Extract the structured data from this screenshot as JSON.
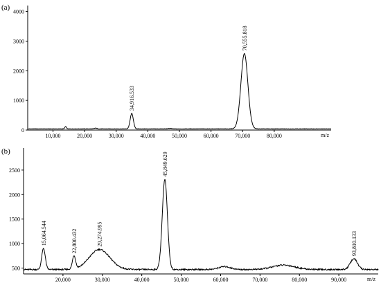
{
  "chart_data": [
    {
      "type": "line",
      "panel_label": "(a)",
      "x_unit_label": "m/z",
      "xlim": [
        2000,
        98000
      ],
      "ylim": [
        0,
        4200
      ],
      "x_ticks": [
        10000,
        20000,
        30000,
        40000,
        50000,
        60000,
        70000,
        80000
      ],
      "x_tick_labels": [
        "10,000",
        "20,000",
        "30,000",
        "40,000",
        "50,000",
        "60,000",
        "70,000",
        "80,000"
      ],
      "y_ticks": [
        0,
        1000,
        2000,
        3000,
        4000
      ],
      "y_tick_labels": [
        "0",
        "1000",
        "2000",
        "3000",
        "4000"
      ],
      "baseline": 40,
      "peaks": [
        {
          "x": 14000,
          "y": 120,
          "width": 250
        },
        {
          "x": 23500,
          "y": 65,
          "width": 400
        },
        {
          "x": 34916.533,
          "y": 560,
          "width": 500
        },
        {
          "x": 47000,
          "y": 55,
          "width": 500
        },
        {
          "x": 70555.818,
          "y": 2580,
          "width": 1100
        }
      ],
      "annotations": [
        {
          "x": 34916.533,
          "y": 560,
          "text": "34,916.533"
        },
        {
          "x": 70555.818,
          "y": 2580,
          "text": "70,555.818"
        }
      ]
    },
    {
      "type": "line",
      "panel_label": "(b)",
      "x_unit_label": "m/z",
      "xlim": [
        10000,
        100000
      ],
      "ylim": [
        380,
        2950
      ],
      "x_ticks": [
        20000,
        30000,
        40000,
        50000,
        60000,
        70000,
        80000,
        90000
      ],
      "x_tick_labels": [
        "20,000",
        "30,000",
        "40,000",
        "50,000",
        "60,000",
        "70,000",
        "80,000",
        "90,000"
      ],
      "y_ticks": [
        500,
        1000,
        1500,
        2000,
        2500
      ],
      "y_tick_labels": [
        "500",
        "1000",
        "1500",
        "2000",
        "2500"
      ],
      "baseline": 470,
      "peaks": [
        {
          "x": 15064.544,
          "y": 900,
          "width": 450
        },
        {
          "x": 22800.432,
          "y": 740,
          "width": 400
        },
        {
          "x": 29274.995,
          "y": 880,
          "width": 2600
        },
        {
          "x": 45849.629,
          "y": 2310,
          "width": 650
        },
        {
          "x": 61000,
          "y": 530,
          "width": 1500
        },
        {
          "x": 76000,
          "y": 560,
          "width": 2800
        },
        {
          "x": 93810.133,
          "y": 690,
          "width": 900
        }
      ],
      "annotations": [
        {
          "x": 15064.544,
          "y": 900,
          "text": "15,064.544"
        },
        {
          "x": 22800.432,
          "y": 740,
          "text": "22,800.432"
        },
        {
          "x": 29274.995,
          "y": 880,
          "text": "29,274.995"
        },
        {
          "x": 45849.629,
          "y": 2310,
          "text": "45,849.629"
        },
        {
          "x": 93810.133,
          "y": 690,
          "text": "93,810.133"
        }
      ]
    }
  ]
}
